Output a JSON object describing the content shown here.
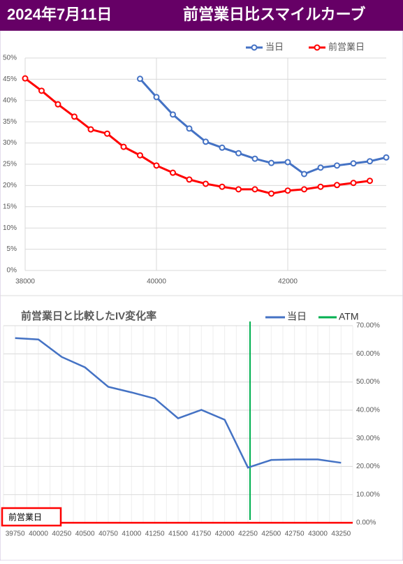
{
  "header": {
    "date": "2024年7月11日",
    "title": "前営業日比スマイルカーブ"
  },
  "chart_data": [
    {
      "type": "line",
      "xlim": [
        38000,
        43500
      ],
      "xticks": [
        38000,
        40000,
        42000
      ],
      "x": [
        38000,
        38250,
        38500,
        38750,
        39000,
        39250,
        39500,
        39750,
        40000,
        40250,
        40500,
        40750,
        41000,
        41250,
        41500,
        41750,
        42000,
        42250,
        42500,
        42750,
        43000,
        43250,
        43500
      ],
      "ylim": [
        0,
        50
      ],
      "yticks": [
        {
          "value": 0,
          "label": "0%"
        },
        {
          "value": 5,
          "label": "5%"
        },
        {
          "value": 10,
          "label": "10%"
        },
        {
          "value": 15,
          "label": "15%"
        },
        {
          "value": 20,
          "label": "20%"
        },
        {
          "value": 25,
          "label": "25%"
        },
        {
          "value": 30,
          "label": "30%"
        },
        {
          "value": 35,
          "label": "35%"
        },
        {
          "value": 40,
          "label": "40%"
        },
        {
          "value": 45,
          "label": "45%"
        },
        {
          "value": 50,
          "label": "50%"
        }
      ],
      "grid": true,
      "legend": "top-right",
      "series": [
        {
          "name": "当日",
          "color": "#4472c4",
          "values": [
            null,
            null,
            null,
            null,
            null,
            null,
            null,
            45.1,
            40.8,
            36.7,
            33.4,
            30.3,
            28.9,
            27.6,
            26.3,
            25.3,
            25.5,
            22.7,
            24.2,
            24.7,
            25.2,
            25.7,
            26.6
          ]
        },
        {
          "name": "前営業日",
          "color": "#ff0000",
          "values": [
            45.2,
            42.3,
            39.1,
            36.2,
            33.2,
            32.2,
            29.1,
            27.1,
            24.7,
            23.0,
            21.4,
            20.4,
            19.7,
            19.1,
            19.1,
            18.1,
            18.8,
            19.1,
            19.7,
            20.1,
            20.6,
            21.1,
            null
          ]
        }
      ]
    },
    {
      "type": "line",
      "title": "前営業日と比較したIV変化率",
      "categories": [
        "39750",
        "40000",
        "40250",
        "40500",
        "40750",
        "41000",
        "41250",
        "41500",
        "41750",
        "42000",
        "42250",
        "42500",
        "42750",
        "43000",
        "43250"
      ],
      "y2lim": [
        0,
        70
      ],
      "y2ticks": [
        {
          "value": 0,
          "label": "0.00%"
        },
        {
          "value": 10,
          "label": "10.00%"
        },
        {
          "value": 20,
          "label": "20.00%"
        },
        {
          "value": 30,
          "label": "30.00%"
        },
        {
          "value": 40,
          "label": "40.00%"
        },
        {
          "value": 50,
          "label": "50.00%"
        },
        {
          "value": 60,
          "label": "60.00%"
        },
        {
          "value": 70,
          "label": "70.00%"
        }
      ],
      "grid": true,
      "legend": "top-right",
      "series": [
        {
          "name": "当日",
          "color": "#4472c4",
          "axis": "y2",
          "values": [
            65.6,
            65.1,
            58.9,
            55.2,
            48.3,
            46.3,
            44.1,
            37.1,
            40.1,
            36.6,
            19.6,
            22.3,
            22.5,
            22.5,
            21.3
          ]
        },
        {
          "name": "前営業日",
          "color": "#ff0000",
          "axis": "y2",
          "values": [
            0,
            0,
            0,
            0,
            0,
            0,
            0,
            0,
            0,
            0,
            0,
            0,
            0,
            0,
            0
          ]
        }
      ],
      "atm": {
        "name": "ATM",
        "color": "#00b050",
        "category": "42250"
      }
    }
  ]
}
